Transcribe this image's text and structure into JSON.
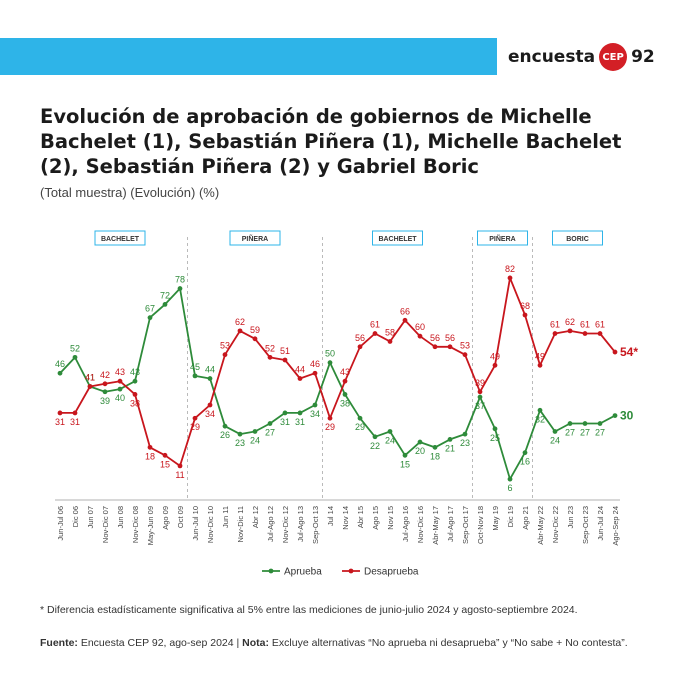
{
  "header": {
    "brand_prefix": "encuesta",
    "brand_badge": "CEP",
    "brand_number": "92"
  },
  "title": "Evolución de aprobación de gobiernos de Michelle Bachelet (1), Sebastián Piñera (1), Michelle Bachelet (2), Sebastián Piñera (2) y Gabriel Boric",
  "subtitle": "(Total muestra) (Evolución) (%)",
  "footnote": "* Diferencia estadísticamente significativa al 5% entre las mediciones de junio-julio 2024 y agosto-septiembre 2024.",
  "source": {
    "source_label": "Fuente:",
    "source_text": " Encuesta CEP 92, ago-sep 2024 | ",
    "note_label": "Nota:",
    "note_text": " Excluye alternativas “No aprueba ni desaprueba” y “No sabe + No contesta”."
  },
  "colors": {
    "aprueba": "#2e8b3a",
    "desaprueba": "#c8161d",
    "period_box": "#2eb4e8"
  },
  "chart_data": {
    "type": "line",
    "categories": [
      "Jun-Jul 06",
      "Dic 06",
      "Jun 07",
      "Nov-Dic 07",
      "Jun 08",
      "Nov-Dic 08",
      "May-Jun 09",
      "Ago 09",
      "Oct 09",
      "Jun-Jul 10",
      "Nov-Dic 10",
      "Jun 11",
      "Nov-Dic 11",
      "Abr 12",
      "Jul-Ago 12",
      "Nov-Dic 12",
      "Jul-Ago 13",
      "Sep-Oct 13",
      "Jul 14",
      "Nov 14",
      "Abr 15",
      "Ago 15",
      "Nov 15",
      "Jul-Ago 16",
      "Nov-Dic 16",
      "Abr-May 17",
      "Jul-Ago 17",
      "Sep-Oct 17",
      "Oct-Nov 18",
      "May 19",
      "Dic 19",
      "Ago 21",
      "Abr-May 22",
      "Nov-Dic 22",
      "Jun 23",
      "Sep-Oct 23",
      "Jun-Jul 24",
      "Ago-Sep 24"
    ],
    "periods": [
      {
        "name": "BACHELET",
        "start": 0,
        "end": 8
      },
      {
        "name": "PIÑERA",
        "start": 9,
        "end": 17
      },
      {
        "name": "BACHELET",
        "start": 18,
        "end": 27
      },
      {
        "name": "PIÑERA",
        "start": 28,
        "end": 31
      },
      {
        "name": "BORIC",
        "start": 32,
        "end": 37
      }
    ],
    "series": [
      {
        "name": "Aprueba",
        "values": [
          46,
          52,
          41,
          39,
          40,
          43,
          67,
          72,
          78,
          45,
          44,
          26,
          23,
          24,
          27,
          31,
          31,
          34,
          50,
          38,
          29,
          22,
          24,
          15,
          20,
          18,
          21,
          23,
          37,
          25,
          6,
          16,
          32,
          24,
          27,
          27,
          27,
          30
        ]
      },
      {
        "name": "Desaprueba",
        "values": [
          31,
          31,
          41,
          42,
          43,
          38,
          18,
          15,
          11,
          29,
          34,
          53,
          62,
          59,
          52,
          51,
          44,
          46,
          29,
          43,
          56,
          61,
          58,
          66,
          60,
          56,
          56,
          53,
          39,
          49,
          82,
          68,
          49,
          61,
          62,
          61,
          61,
          54
        ]
      }
    ],
    "last_labels": {
      "Aprueba": "30",
      "Desaprueba": "54*"
    },
    "legend": [
      "Aprueba",
      "Desaprueba"
    ],
    "legend_position": "bottom",
    "grid": false
  }
}
